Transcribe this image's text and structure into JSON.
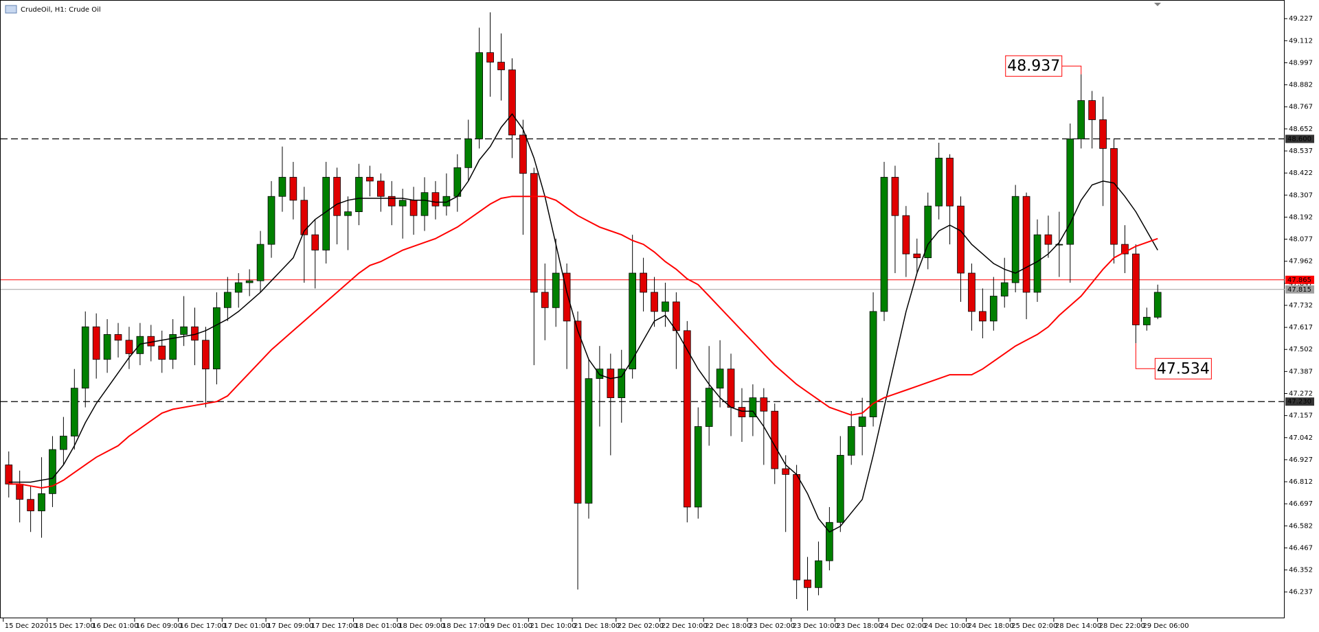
{
  "chart_data": {
    "type": "candlestick",
    "title": "CrudeOil, H1:  Crude Oil",
    "open": [
      46.9,
      46.8,
      46.72,
      46.66,
      46.75,
      46.98,
      47.05,
      47.3,
      47.62,
      47.45,
      47.58,
      47.55,
      47.48,
      47.57,
      47.52,
      47.45,
      47.58,
      47.62,
      47.55,
      47.4,
      47.72,
      47.8,
      47.85,
      47.86,
      48.05,
      48.3,
      48.4,
      48.28,
      48.1,
      48.02,
      48.4,
      48.2,
      48.22,
      48.4,
      48.38,
      48.3,
      48.25,
      48.28,
      48.2,
      48.32,
      48.25,
      48.3,
      48.45,
      48.6,
      49.05,
      49.0,
      48.96,
      48.62,
      48.42,
      47.8,
      47.72,
      47.9,
      47.65,
      46.7,
      47.35,
      47.4,
      47.25,
      47.4,
      47.9,
      47.8,
      47.7,
      47.75,
      47.6,
      46.68,
      47.1,
      47.3,
      47.4,
      47.2,
      47.15,
      47.25,
      47.18,
      46.88,
      46.85,
      46.3,
      46.26,
      46.4,
      46.6,
      46.95,
      47.1,
      47.15,
      47.7,
      48.4,
      48.2,
      48.0,
      47.98,
      48.25,
      48.5,
      48.25,
      47.9,
      47.7,
      47.65,
      47.78,
      47.85,
      48.3,
      47.8,
      48.1,
      48.05,
      48.05,
      48.6,
      48.8,
      48.7,
      48.55,
      48.05,
      48.0,
      47.63,
      47.67
    ],
    "high": [
      46.97,
      46.87,
      46.79,
      46.94,
      47.05,
      47.15,
      47.4,
      47.7,
      47.69,
      47.66,
      47.64,
      47.62,
      47.64,
      47.63,
      47.6,
      47.66,
      47.78,
      47.72,
      47.62,
      47.8,
      47.88,
      47.9,
      47.92,
      48.12,
      48.38,
      48.56,
      48.48,
      48.35,
      48.18,
      48.48,
      48.45,
      48.3,
      48.47,
      48.46,
      48.42,
      48.38,
      48.34,
      48.35,
      48.4,
      48.38,
      48.42,
      48.52,
      48.7,
      49.18,
      49.26,
      49.15,
      49.02,
      48.7,
      48.45,
      47.95,
      48.08,
      47.95,
      47.7,
      47.45,
      47.52,
      47.48,
      47.5,
      48.1,
      47.98,
      47.88,
      47.85,
      47.8,
      47.65,
      47.2,
      47.52,
      47.55,
      47.48,
      47.3,
      47.32,
      47.3,
      47.22,
      46.95,
      46.9,
      46.42,
      46.5,
      46.68,
      47.05,
      47.18,
      47.25,
      47.8,
      48.48,
      48.46,
      48.25,
      48.08,
      48.32,
      48.58,
      48.52,
      48.3,
      47.95,
      47.82,
      47.88,
      47.98,
      48.36,
      48.32,
      48.18,
      48.2,
      48.22,
      48.68,
      48.937,
      48.85,
      48.82,
      48.6,
      48.15,
      48.05,
      47.72,
      47.84
    ],
    "low": [
      46.73,
      46.6,
      46.55,
      46.52,
      46.68,
      46.9,
      46.98,
      47.2,
      47.35,
      47.38,
      47.46,
      47.4,
      47.42,
      47.44,
      47.38,
      47.4,
      47.52,
      47.42,
      47.2,
      47.32,
      47.65,
      47.72,
      47.78,
      47.8,
      47.98,
      48.22,
      48.18,
      47.85,
      47.82,
      47.95,
      48.05,
      48.02,
      48.15,
      48.3,
      48.22,
      48.15,
      48.08,
      48.1,
      48.12,
      48.18,
      48.2,
      48.22,
      48.38,
      48.55,
      48.82,
      48.8,
      48.5,
      48.1,
      47.42,
      47.55,
      47.62,
      47.4,
      46.25,
      46.62,
      47.1,
      46.95,
      47.12,
      47.35,
      47.7,
      47.62,
      47.62,
      47.4,
      46.6,
      46.62,
      47.0,
      47.2,
      47.05,
      47.02,
      47.05,
      46.9,
      46.8,
      46.55,
      46.2,
      46.14,
      46.22,
      46.35,
      46.55,
      46.9,
      46.95,
      47.1,
      47.65,
      47.9,
      47.88,
      47.9,
      47.92,
      48.18,
      48.05,
      47.75,
      47.6,
      47.56,
      47.6,
      47.72,
      47.8,
      47.66,
      47.75,
      47.98,
      47.88,
      47.85,
      48.55,
      48.55,
      48.25,
      47.95,
      47.9,
      47.534,
      47.6,
      47.66
    ],
    "close": [
      46.8,
      46.72,
      46.66,
      46.75,
      46.98,
      47.05,
      47.3,
      47.62,
      47.45,
      47.58,
      47.55,
      47.48,
      47.57,
      47.52,
      47.45,
      47.58,
      47.62,
      47.55,
      47.4,
      47.72,
      47.8,
      47.85,
      47.86,
      48.05,
      48.3,
      48.4,
      48.28,
      48.1,
      48.02,
      48.4,
      48.2,
      48.22,
      48.4,
      48.38,
      48.3,
      48.25,
      48.28,
      48.2,
      48.32,
      48.25,
      48.3,
      48.45,
      48.6,
      49.05,
      49.0,
      48.96,
      48.62,
      48.42,
      47.8,
      47.72,
      47.9,
      47.65,
      46.7,
      47.35,
      47.4,
      47.25,
      47.4,
      47.9,
      47.8,
      47.7,
      47.75,
      47.6,
      46.68,
      47.1,
      47.3,
      47.4,
      47.2,
      47.15,
      47.25,
      47.18,
      46.88,
      46.85,
      46.3,
      46.26,
      46.4,
      46.6,
      46.95,
      47.1,
      47.15,
      47.7,
      48.4,
      48.2,
      48.0,
      47.98,
      48.25,
      48.5,
      48.25,
      47.9,
      47.7,
      47.65,
      47.78,
      47.85,
      48.3,
      47.8,
      48.1,
      48.05,
      48.05,
      48.6,
      48.8,
      48.7,
      48.55,
      48.05,
      48.0,
      47.63,
      47.67,
      47.8
    ],
    "up_color": "#008000",
    "down_color": "#e00000",
    "wick_color": "#000000",
    "lines": [
      {
        "color": "#000000",
        "values": [
          46.81,
          46.81,
          46.81,
          46.82,
          46.83,
          46.9,
          47.0,
          47.12,
          47.22,
          47.3,
          47.38,
          47.46,
          47.53,
          47.54,
          47.55,
          47.56,
          47.57,
          47.58,
          47.6,
          47.63,
          47.66,
          47.7,
          47.75,
          47.8,
          47.86,
          47.92,
          47.98,
          48.12,
          48.18,
          48.22,
          48.26,
          48.28,
          48.29,
          48.29,
          48.29,
          48.29,
          48.29,
          48.28,
          48.28,
          48.27,
          48.27,
          48.3,
          48.38,
          48.49,
          48.56,
          48.66,
          48.73,
          48.65,
          48.5,
          48.3,
          48.05,
          47.8,
          47.6,
          47.45,
          47.37,
          47.35,
          47.36,
          47.45,
          47.55,
          47.65,
          47.68,
          47.6,
          47.5,
          47.4,
          47.32,
          47.25,
          47.2,
          47.18,
          47.18,
          47.1,
          47.0,
          46.9,
          46.85,
          46.75,
          46.62,
          46.55,
          46.58,
          46.65,
          46.72,
          46.95,
          47.2,
          47.45,
          47.7,
          47.9,
          48.05,
          48.12,
          48.15,
          48.12,
          48.05,
          48.0,
          47.95,
          47.92,
          47.9,
          47.93,
          47.96,
          48.0,
          48.06,
          48.16,
          48.28,
          48.36,
          48.38,
          48.37,
          48.3,
          48.22,
          48.12,
          48.02
        ]
      },
      {
        "color": "#ff0000",
        "values": [
          46.8,
          46.8,
          46.79,
          46.78,
          46.79,
          46.82,
          46.86,
          46.9,
          46.94,
          46.97,
          47.0,
          47.05,
          47.09,
          47.13,
          47.17,
          47.19,
          47.2,
          47.21,
          47.22,
          47.23,
          47.26,
          47.32,
          47.38,
          47.44,
          47.5,
          47.55,
          47.6,
          47.65,
          47.7,
          47.75,
          47.8,
          47.85,
          47.9,
          47.94,
          47.96,
          47.99,
          48.02,
          48.04,
          48.06,
          48.08,
          48.11,
          48.14,
          48.18,
          48.22,
          48.26,
          48.29,
          48.3,
          48.3,
          48.3,
          48.3,
          48.28,
          48.24,
          48.2,
          48.17,
          48.14,
          48.12,
          48.1,
          48.07,
          48.05,
          48.01,
          47.96,
          47.92,
          47.87,
          47.84,
          47.78,
          47.72,
          47.66,
          47.6,
          47.54,
          47.48,
          47.42,
          47.37,
          47.32,
          47.28,
          47.24,
          47.2,
          47.18,
          47.16,
          47.17,
          47.22,
          47.25,
          47.27,
          47.29,
          47.31,
          47.33,
          47.35,
          47.37,
          47.37,
          47.37,
          47.4,
          47.44,
          47.48,
          47.52,
          47.55,
          47.58,
          47.62,
          47.68,
          47.73,
          47.78,
          47.85,
          47.92,
          47.98,
          48.01,
          48.04,
          48.06,
          48.08
        ]
      }
    ],
    "xlim": [
      -0.8,
      116.6
    ],
    "xticks": [
      {
        "value": -0.5,
        "label": "15 Dec 2020"
      },
      {
        "value": 3.5,
        "label": "15 Dec 17:00"
      },
      {
        "value": 7.5,
        "label": "16 Dec 01:00"
      },
      {
        "value": 11.5,
        "label": "16 Dec 09:00"
      },
      {
        "value": 15.5,
        "label": "16 Dec 17:00"
      },
      {
        "value": 19.5,
        "label": "17 Dec 01:00"
      },
      {
        "value": 23.5,
        "label": "17 Dec 09:00"
      },
      {
        "value": 27.5,
        "label": "17 Dec 17:00"
      },
      {
        "value": 31.5,
        "label": "18 Dec 01:00"
      },
      {
        "value": 35.5,
        "label": "18 Dec 09:00"
      },
      {
        "value": 39.5,
        "label": "18 Dec 17:00"
      },
      {
        "value": 43.5,
        "label": "19 Dec 01:00"
      },
      {
        "value": 47.5,
        "label": "21 Dec 10:00"
      },
      {
        "value": 51.5,
        "label": "21 Dec 18:00"
      },
      {
        "value": 55.5,
        "label": "22 Dec 02:00"
      },
      {
        "value": 59.5,
        "label": "22 Dec 10:00"
      },
      {
        "value": 63.5,
        "label": "22 Dec 18:00"
      },
      {
        "value": 67.5,
        "label": "23 Dec 02:00"
      },
      {
        "value": 71.5,
        "label": "23 Dec 10:00"
      },
      {
        "value": 75.5,
        "label": "23 Dec 18:00"
      },
      {
        "value": 79.5,
        "label": "24 Dec 02:00"
      },
      {
        "value": 83.5,
        "label": "24 Dec 10:00"
      },
      {
        "value": 87.5,
        "label": "24 Dec 18:00"
      },
      {
        "value": 91.5,
        "label": "25 Dec 02:00"
      },
      {
        "value": 95.5,
        "label": "28 Dec 14:00"
      },
      {
        "value": 99.5,
        "label": "28 Dec 22:00"
      },
      {
        "value": 103.5,
        "label": "29 Dec 06:00"
      }
    ],
    "ylim": [
      46.1,
      49.31
    ],
    "yticks": [
      49.227,
      49.112,
      48.997,
      48.882,
      48.767,
      48.652,
      48.537,
      48.422,
      48.307,
      48.192,
      48.077,
      47.962,
      47.847,
      47.732,
      47.617,
      47.502,
      47.387,
      47.272,
      47.157,
      47.042,
      46.927,
      46.812,
      46.697,
      46.582,
      46.467,
      46.352,
      46.237
    ],
    "levels": [
      {
        "value": 48.6,
        "label": "48.600",
        "color": "#000000",
        "style": "dashed"
      },
      {
        "value": 47.865,
        "color": "#ff0000",
        "style": "solid"
      },
      {
        "value": 47.815,
        "color": "#a0a0a0",
        "style": "solid"
      },
      {
        "value": 47.23,
        "label": "47.230",
        "color": "#000000",
        "style": "dashed"
      }
    ],
    "annotations": [
      {
        "value": 48.937,
        "color": "#ff0000",
        "at": "high"
      },
      {
        "value": 47.534,
        "color": "#ff0000",
        "at": "low"
      }
    ]
  }
}
